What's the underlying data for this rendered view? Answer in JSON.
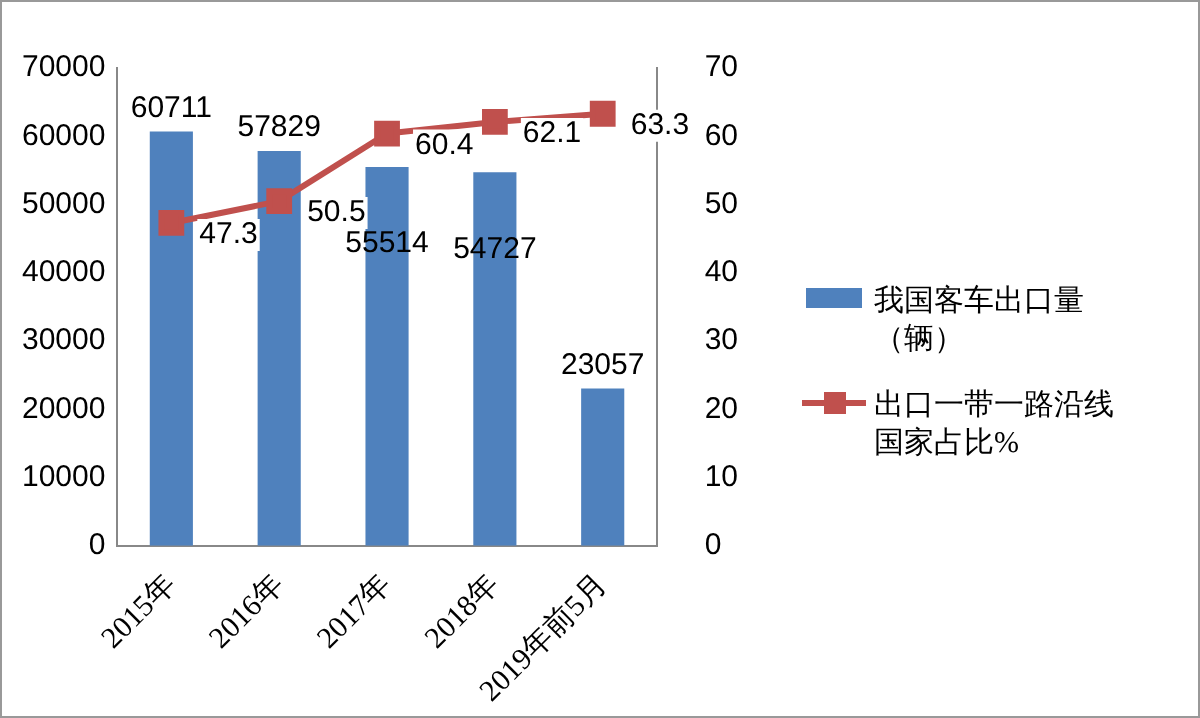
{
  "chart_data": {
    "type": "bar",
    "categories": [
      "2015年",
      "2016年",
      "2017年",
      "2018年",
      "2019年前5月"
    ],
    "series": [
      {
        "name": "我国客车出口量（辆）",
        "color": "#4f81bd",
        "values": [
          60711,
          57829,
          55514,
          54727,
          23057
        ]
      },
      {
        "name": "出口一带一路沿线国家占比%",
        "type": "line",
        "axis": "y2",
        "color": "#c0504d",
        "marker": "square",
        "values": [
          47.3,
          50.5,
          60.4,
          62.1,
          63.3
        ]
      }
    ],
    "ylim": [
      0,
      70000
    ],
    "yticks": [
      0,
      10000,
      20000,
      30000,
      40000,
      50000,
      60000,
      70000
    ],
    "y2lim": [
      0,
      70
    ],
    "y2ticks": [
      0,
      10,
      20,
      30,
      40,
      50,
      60,
      70
    ],
    "data_labels": true,
    "grid": false,
    "legend": "right"
  }
}
